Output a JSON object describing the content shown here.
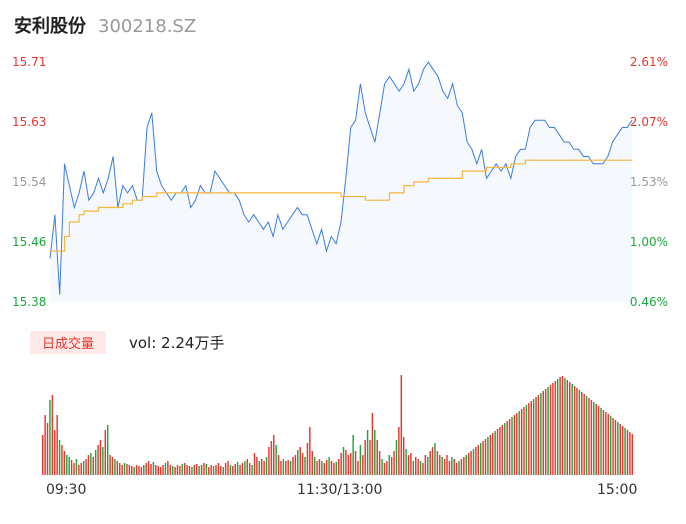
{
  "header": {
    "name": "安利股份",
    "code": "300218.SZ"
  },
  "volume": {
    "tag": "日成交量",
    "text": "vol: 2.24万手"
  },
  "time_labels": [
    "09:30",
    "11:30/13:00",
    "15:00"
  ],
  "colors": {
    "up": "#e8352e",
    "down": "#1aa83a",
    "price_line": "#3b7ddd",
    "avg_line": "#f6b53c",
    "neutral": "#999999"
  },
  "chart_data": [
    {
      "type": "line",
      "y_left_ticks": [
        "15.71",
        "15.63",
        "15.54",
        "15.46",
        "15.38"
      ],
      "y_right_ticks": [
        "2.61%",
        "2.07%",
        "1.53%",
        "1.00%",
        "0.46%"
      ],
      "ylim": [
        15.38,
        15.71
      ],
      "x_range": [
        0,
        240
      ],
      "series": [
        {
          "x": [
            0,
            2,
            4,
            6,
            8,
            10,
            12,
            14,
            16,
            18,
            20,
            22,
            24,
            26,
            28,
            30,
            32,
            34,
            36,
            38,
            40,
            42,
            44,
            46,
            48,
            50,
            52,
            54,
            56,
            58,
            60,
            62,
            64,
            66,
            68,
            70,
            72,
            74,
            76,
            78,
            80,
            82,
            84,
            86,
            88,
            90,
            92,
            94,
            96,
            98,
            100,
            102,
            104,
            106,
            108,
            110,
            112,
            114,
            116,
            118,
            120,
            122,
            124,
            126,
            128,
            130,
            132,
            134,
            136,
            138,
            140,
            142,
            144,
            146,
            148,
            150,
            152,
            154,
            156,
            158,
            160,
            162,
            164,
            166,
            168,
            170,
            172,
            174,
            176,
            178,
            180,
            182,
            184,
            186,
            188,
            190,
            192,
            194,
            196,
            198,
            200,
            202,
            204,
            206,
            208,
            210,
            212,
            214,
            216,
            218,
            220,
            222,
            224,
            226,
            228,
            230,
            232,
            234,
            236,
            238,
            240
          ],
          "values": [
            15.44,
            15.5,
            15.39,
            15.57,
            15.54,
            15.51,
            15.53,
            15.56,
            15.52,
            15.53,
            15.55,
            15.53,
            15.55,
            15.58,
            15.51,
            15.54,
            15.53,
            15.54,
            15.52,
            15.52,
            15.62,
            15.64,
            15.56,
            15.54,
            15.53,
            15.52,
            15.53,
            15.53,
            15.54,
            15.51,
            15.52,
            15.54,
            15.53,
            15.53,
            15.56,
            15.55,
            15.54,
            15.53,
            15.53,
            15.52,
            15.5,
            15.49,
            15.5,
            15.49,
            15.48,
            15.49,
            15.47,
            15.5,
            15.48,
            15.49,
            15.5,
            15.51,
            15.5,
            15.5,
            15.48,
            15.46,
            15.48,
            15.45,
            15.47,
            15.46,
            15.49,
            15.55,
            15.62,
            15.63,
            15.68,
            15.64,
            15.62,
            15.6,
            15.64,
            15.68,
            15.69,
            15.68,
            15.67,
            15.68,
            15.7,
            15.67,
            15.68,
            15.7,
            15.71,
            15.7,
            15.69,
            15.67,
            15.66,
            15.68,
            15.65,
            15.64,
            15.6,
            15.59,
            15.57,
            15.59,
            15.55,
            15.56,
            15.57,
            15.56,
            15.57,
            15.55,
            15.58,
            15.59,
            15.59,
            15.62,
            15.63,
            15.63,
            15.63,
            15.62,
            15.62,
            15.61,
            15.6,
            15.6,
            15.59,
            15.59,
            15.58,
            15.58,
            15.57,
            15.57,
            15.57,
            15.58,
            15.6,
            15.61,
            15.62,
            15.62,
            15.63
          ]
        },
        {
          "x": [
            0,
            6,
            8,
            12,
            14,
            20,
            26,
            30,
            34,
            38,
            40,
            44,
            48,
            60,
            80,
            100,
            120,
            125,
            130,
            136,
            140,
            146,
            150,
            156,
            160,
            170,
            180,
            190,
            196,
            200,
            210,
            220,
            230,
            240
          ],
          "values": [
            15.45,
            15.47,
            15.49,
            15.5,
            15.505,
            15.51,
            15.51,
            15.515,
            15.52,
            15.525,
            15.525,
            15.53,
            15.53,
            15.53,
            15.53,
            15.53,
            15.525,
            15.525,
            15.52,
            15.52,
            15.53,
            15.54,
            15.545,
            15.55,
            15.55,
            15.56,
            15.565,
            15.57,
            15.575,
            15.575,
            15.575,
            15.575,
            15.575,
            15.575
          ]
        }
      ]
    },
    {
      "type": "bar",
      "title": "日成交量",
      "x_range": [
        0,
        240
      ],
      "values": [
        40,
        60,
        52,
        75,
        80,
        45,
        60,
        35,
        30,
        24,
        20,
        18,
        15,
        12,
        16,
        10,
        12,
        14,
        16,
        20,
        22,
        18,
        25,
        30,
        35,
        28,
        45,
        50,
        20,
        18,
        16,
        14,
        12,
        10,
        12,
        11,
        10,
        9,
        8,
        10,
        9,
        8,
        10,
        12,
        14,
        11,
        13,
        10,
        9,
        8,
        10,
        12,
        14,
        10,
        9,
        8,
        10,
        9,
        11,
        12,
        10,
        9,
        8,
        10,
        11,
        9,
        10,
        12,
        11,
        8,
        10,
        9,
        10,
        12,
        9,
        8,
        12,
        14,
        10,
        9,
        11,
        13,
        10,
        12,
        14,
        16,
        12,
        10,
        22,
        18,
        14,
        16,
        14,
        18,
        28,
        34,
        40,
        30,
        20,
        14,
        16,
        14,
        15,
        14,
        18,
        20,
        25,
        28,
        22,
        18,
        32,
        48,
        24,
        18,
        14,
        16,
        14,
        12,
        15,
        18,
        14,
        12,
        13,
        16,
        22,
        28,
        25,
        20,
        22,
        40,
        24,
        14,
        30,
        20,
        35,
        45,
        35,
        62,
        45,
        35,
        24,
        16,
        12,
        14,
        20,
        18,
        24,
        35,
        48,
        100,
        38,
        26,
        20,
        22,
        14,
        18,
        16,
        14,
        12,
        20,
        18,
        24,
        28,
        32,
        24,
        20,
        18,
        16,
        20,
        14,
        18,
        16,
        12,
        14,
        16,
        18,
        20,
        22,
        24,
        26,
        28,
        30,
        32,
        34,
        36,
        38,
        40,
        42,
        44,
        46,
        48,
        50,
        52,
        54,
        56,
        58,
        60,
        62,
        64,
        66,
        68,
        70,
        72,
        74,
        76,
        78,
        80,
        82,
        84,
        86,
        88,
        90,
        92,
        94,
        96,
        98,
        99,
        97,
        95,
        93,
        91,
        89,
        87,
        85,
        83,
        81,
        79,
        77,
        75,
        73,
        71,
        69,
        67,
        65,
        63,
        61,
        59,
        57,
        55,
        53,
        51,
        49,
        47,
        45,
        43,
        41
      ],
      "directions": [
        "up",
        "up",
        "up",
        "down",
        "up",
        "up",
        "up",
        "down",
        "up",
        "up",
        "down",
        "down",
        "up",
        "up",
        "down",
        "up",
        "up",
        "down",
        "up",
        "up",
        "down",
        "up",
        "down",
        "up",
        "up",
        "down",
        "up",
        "down",
        "up",
        "up",
        "down",
        "up",
        "up",
        "up",
        "down",
        "up",
        "up",
        "up",
        "down",
        "up",
        "up",
        "up",
        "down",
        "up",
        "up",
        "up",
        "down",
        "up",
        "up",
        "up",
        "up",
        "down",
        "up",
        "up",
        "down",
        "up",
        "up",
        "up",
        "down",
        "up",
        "up",
        "up",
        "down",
        "up",
        "up",
        "down",
        "up",
        "up",
        "down",
        "up",
        "up",
        "down",
        "up",
        "up",
        "up",
        "down",
        "up",
        "up",
        "down",
        "up",
        "up",
        "down",
        "up",
        "up",
        "down",
        "up",
        "up",
        "down",
        "up",
        "up",
        "down",
        "up",
        "up",
        "down",
        "up",
        "up",
        "up",
        "down",
        "up",
        "up",
        "down",
        "up",
        "up",
        "down",
        "up",
        "up",
        "down",
        "up",
        "up",
        "down",
        "up",
        "up",
        "up",
        "down",
        "up",
        "up",
        "down",
        "up",
        "up",
        "down",
        "up",
        "up",
        "down",
        "up",
        "up",
        "down",
        "up",
        "up",
        "up",
        "down",
        "up",
        "up",
        "down",
        "up",
        "up",
        "down",
        "up",
        "up",
        "down",
        "up",
        "up",
        "down",
        "up",
        "up",
        "down",
        "up",
        "up",
        "down",
        "up",
        "up",
        "up",
        "down",
        "up",
        "up",
        "down",
        "up",
        "up",
        "down",
        "up",
        "up",
        "down",
        "up",
        "up",
        "down",
        "up",
        "up",
        "down",
        "up",
        "up",
        "up",
        "down",
        "up",
        "up",
        "down",
        "up",
        "up",
        "down",
        "up",
        "up",
        "down",
        "up",
        "up",
        "down",
        "up",
        "up",
        "down",
        "up",
        "up",
        "down",
        "up",
        "up",
        "up",
        "down",
        "up",
        "up",
        "down",
        "up",
        "up",
        "down",
        "up",
        "up",
        "down",
        "up",
        "up",
        "down",
        "up",
        "up",
        "down",
        "up",
        "up",
        "down",
        "up",
        "up",
        "up",
        "down",
        "up",
        "up",
        "down",
        "up",
        "up",
        "down",
        "up",
        "up",
        "down",
        "up",
        "up",
        "down",
        "up",
        "up",
        "down",
        "up",
        "up",
        "down",
        "up",
        "up",
        "up",
        "down",
        "up",
        "up",
        "down",
        "up",
        "up",
        "down",
        "up"
      ]
    }
  ]
}
